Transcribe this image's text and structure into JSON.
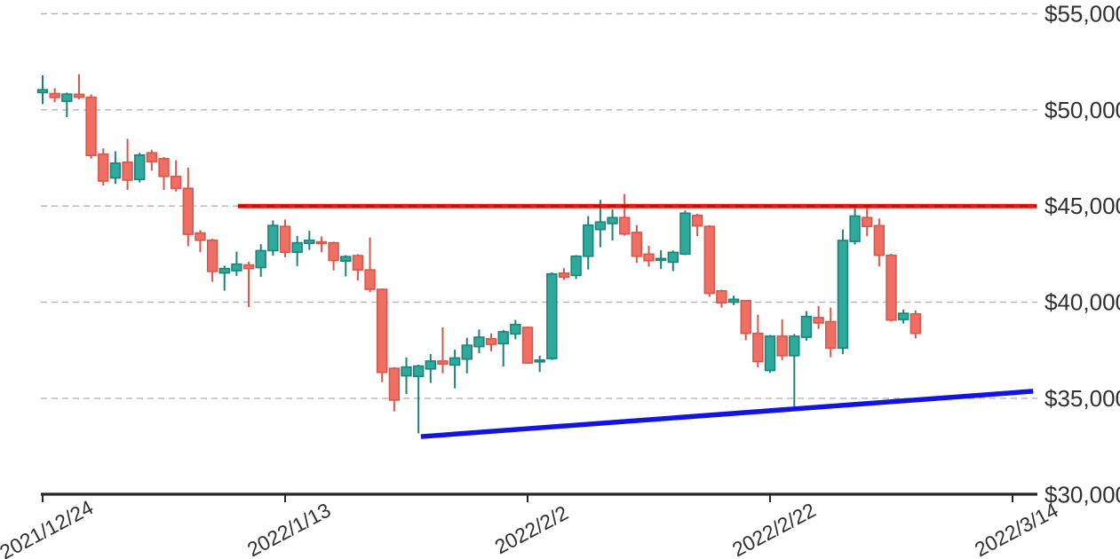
{
  "chart_data": {
    "type": "candlestick",
    "title": "",
    "description": "Daily BTC/USD candlestick chart with a horizontal resistance line at $45,000 and a rising blue support trendline",
    "grid": "horizontal-dashed",
    "legend_position": "none",
    "x_axis": {
      "ticks": [
        {
          "day": 0,
          "label": "2021/12/24"
        },
        {
          "day": 20,
          "label": "2022/1/13"
        },
        {
          "day": 40,
          "label": "2022/2/2"
        },
        {
          "day": 60,
          "label": "2022/2/22"
        },
        {
          "day": 80,
          "label": "2022/3/14"
        }
      ]
    },
    "y_axis": {
      "range": [
        30000,
        55700
      ],
      "ticks": [
        {
          "value": 55000,
          "label": "$55,000",
          "gridline": true
        },
        {
          "value": 50000,
          "label": "$50,000",
          "gridline": true
        },
        {
          "value": 45000,
          "label": "$45,000",
          "gridline": true
        },
        {
          "value": 40000,
          "label": "$40,000",
          "gridline": true
        },
        {
          "value": 35000,
          "label": "$35,000",
          "gridline": true
        },
        {
          "value": 30000,
          "label": "$30,000",
          "gridline": false
        }
      ]
    },
    "candles_format": [
      "date",
      "open",
      "high",
      "low",
      "close"
    ],
    "candles": [
      [
        "2021/12/24",
        50900,
        51800,
        50300,
        51050
      ],
      [
        "2021/12/25",
        50850,
        51130,
        50400,
        50650
      ],
      [
        "2021/12/26",
        50450,
        50900,
        49620,
        50820
      ],
      [
        "2021/12/27",
        50810,
        51860,
        50550,
        50660
      ],
      [
        "2021/12/28",
        50660,
        50800,
        47460,
        47630
      ],
      [
        "2021/12/29",
        47700,
        48000,
        46070,
        46300
      ],
      [
        "2021/12/30",
        46460,
        47850,
        46150,
        47230
      ],
      [
        "2021/12/31",
        47280,
        48500,
        45840,
        46350
      ],
      [
        "2022/1/1",
        46380,
        47770,
        46230,
        47650
      ],
      [
        "2022/1/2",
        47770,
        47930,
        46840,
        47310
      ],
      [
        "2022/1/3",
        47460,
        47550,
        45840,
        46540
      ],
      [
        "2022/1/4",
        46540,
        47380,
        45760,
        45920
      ],
      [
        "2022/1/5",
        45920,
        47000,
        42910,
        43530
      ],
      [
        "2022/1/6",
        43600,
        43750,
        42600,
        43220
      ],
      [
        "2022/1/7",
        43220,
        43300,
        41060,
        41600
      ],
      [
        "2022/1/8",
        41520,
        41900,
        40600,
        41750
      ],
      [
        "2022/1/9",
        41640,
        42630,
        41370,
        41980
      ],
      [
        "2022/1/10",
        41940,
        42100,
        39750,
        41750
      ],
      [
        "2022/1/11",
        41800,
        43020,
        41320,
        42680
      ],
      [
        "2022/1/12",
        42680,
        44250,
        42420,
        43990
      ],
      [
        "2022/1/13",
        43940,
        44300,
        42340,
        42600
      ],
      [
        "2022/1/14",
        42600,
        43450,
        41880,
        43090
      ],
      [
        "2022/1/15",
        43060,
        43710,
        42720,
        43220
      ],
      [
        "2022/1/16",
        43140,
        43420,
        42600,
        43050
      ],
      [
        "2022/1/17",
        43090,
        43150,
        41650,
        42170
      ],
      [
        "2022/1/18",
        42140,
        42450,
        41340,
        42370
      ],
      [
        "2022/1/19",
        42420,
        42500,
        41130,
        41680
      ],
      [
        "2022/1/20",
        41680,
        43370,
        40520,
        40670
      ],
      [
        "2022/1/21",
        40670,
        40700,
        35840,
        36350
      ],
      [
        "2022/1/22",
        36560,
        36620,
        34320,
        34910
      ],
      [
        "2022/1/23",
        36170,
        37120,
        35230,
        36630
      ],
      [
        "2022/1/24",
        36140,
        36750,
        33180,
        36680
      ],
      [
        "2022/1/25",
        36530,
        37300,
        35800,
        36940
      ],
      [
        "2022/1/26",
        36940,
        38690,
        36300,
        36790
      ],
      [
        "2022/1/27",
        36730,
        37530,
        35520,
        37100
      ],
      [
        "2022/1/28",
        37040,
        38150,
        36300,
        37760
      ],
      [
        "2022/1/29",
        37690,
        38580,
        37350,
        38180
      ],
      [
        "2022/1/30",
        38100,
        38380,
        37450,
        37810
      ],
      [
        "2022/1/31",
        37840,
        38560,
        36650,
        38460
      ],
      [
        "2022/2/1",
        38350,
        39080,
        38070,
        38840
      ],
      [
        "2022/2/2",
        38690,
        38730,
        36800,
        36840
      ],
      [
        "2022/2/3",
        36930,
        37220,
        36370,
        36990
      ],
      [
        "2022/2/4",
        37070,
        41550,
        37000,
        41470
      ],
      [
        "2022/2/5",
        41510,
        41770,
        41160,
        41310
      ],
      [
        "2022/2/6",
        41390,
        42450,
        41200,
        42390
      ],
      [
        "2022/2/7",
        42390,
        44480,
        41700,
        44010
      ],
      [
        "2022/2/8",
        43780,
        45320,
        42860,
        44170
      ],
      [
        "2022/2/9",
        44090,
        44820,
        43210,
        44400
      ],
      [
        "2022/2/10",
        44400,
        45630,
        43460,
        43550
      ],
      [
        "2022/2/11",
        43630,
        44010,
        42040,
        42390
      ],
      [
        "2022/2/12",
        42500,
        42930,
        41850,
        42160
      ],
      [
        "2022/2/13",
        42220,
        42700,
        41730,
        42270
      ],
      [
        "2022/2/14",
        42080,
        42690,
        41620,
        42590
      ],
      [
        "2022/2/15",
        42500,
        44760,
        42450,
        44630
      ],
      [
        "2022/2/16",
        44510,
        44600,
        43430,
        43970
      ],
      [
        "2022/2/17",
        43940,
        44000,
        40280,
        40460
      ],
      [
        "2022/2/18",
        40590,
        40650,
        39720,
        39970
      ],
      [
        "2022/2/19",
        40000,
        40340,
        39850,
        40150
      ],
      [
        "2022/2/20",
        40080,
        40100,
        38020,
        38380
      ],
      [
        "2022/2/21",
        38380,
        39350,
        36610,
        36910
      ],
      [
        "2022/2/22",
        36450,
        38290,
        36330,
        38230
      ],
      [
        "2022/2/23",
        38230,
        39110,
        36990,
        37220
      ],
      [
        "2022/2/24",
        37220,
        38350,
        34440,
        38230
      ],
      [
        "2022/2/25",
        38180,
        39540,
        38000,
        39260
      ],
      [
        "2022/2/26",
        39200,
        39810,
        38610,
        38920
      ],
      [
        "2022/2/27",
        38990,
        39720,
        37140,
        37610
      ],
      [
        "2022/2/28",
        37610,
        43780,
        37300,
        43210
      ],
      [
        "2022/3/1",
        43160,
        44970,
        43000,
        44480
      ],
      [
        "2022/3/2",
        44400,
        44940,
        43430,
        43940
      ],
      [
        "2022/3/3",
        43980,
        44350,
        41860,
        42440
      ],
      [
        "2022/3/4",
        42440,
        42520,
        38990,
        39070
      ],
      [
        "2022/3/5",
        39100,
        39620,
        38890,
        39420
      ],
      [
        "2022/3/6",
        39390,
        39570,
        38120,
        38380
      ]
    ],
    "lines": {
      "resistance": {
        "price": 45000,
        "day_start": 16.1,
        "day_end": 82.0,
        "color": "#e9190b"
      },
      "support": {
        "day_start": 31.2,
        "price_start": 33010,
        "day_end": 81.7,
        "price_end": 35370,
        "color": "#1414e0"
      }
    },
    "colors": {
      "up": "#2ea99c",
      "up_edge": "#1b8378",
      "down": "#ee6f64",
      "down_edge": "#d9564b",
      "grid": "#b3b3b3",
      "axis": "#262626",
      "label": "#303030",
      "background": "#ffffff"
    }
  }
}
